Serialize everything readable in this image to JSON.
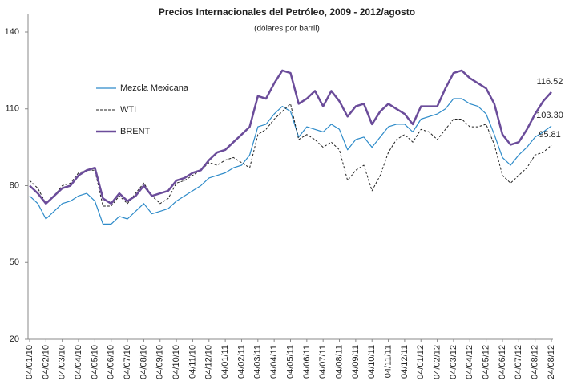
{
  "chart_data": {
    "type": "line",
    "title": "Precios Internacionales del Petróleo, 2009 - 2012/agosto",
    "subtitle": "(dólares por barril)",
    "categories": [
      "04/01/10",
      null,
      "04/02/10",
      null,
      "04/03/10",
      null,
      "04/04/10",
      null,
      "04/05/10",
      null,
      "04/06/10",
      null,
      "04/07/10",
      null,
      "04/08/10",
      null,
      "04/09/10",
      null,
      "04/10/10",
      null,
      "04/11/10",
      null,
      "04/12/10",
      null,
      "04/01/11",
      null,
      "04/02/11",
      null,
      "04/03/11",
      null,
      "04/04/11",
      null,
      "04/05/11",
      null,
      "04/06/11",
      null,
      "04/07/11",
      null,
      "04/08/11",
      null,
      "04/09/11",
      null,
      "04/10/11",
      null,
      "04/11/11",
      null,
      "04/12/11",
      null,
      "04/01/12",
      null,
      "04/02/12",
      null,
      "04/03/12",
      null,
      "04/04/12",
      null,
      "04/05/12",
      null,
      "04/06/12",
      null,
      "04/07/12",
      null,
      "04/08/12",
      null,
      "24/08/12"
    ],
    "series": [
      {
        "name": "Mezcla Mexicana",
        "color": "#2e8bc9",
        "line_width": 1.2,
        "line_style": "solid",
        "values": [
          76,
          73,
          67,
          70,
          73,
          74,
          76,
          77,
          74,
          65,
          65,
          68,
          67,
          70,
          73,
          69,
          70,
          71,
          74,
          76,
          78,
          80,
          83,
          84,
          85,
          87,
          88,
          92,
          103,
          104,
          108,
          111,
          109,
          99,
          103,
          102,
          101,
          104,
          102,
          94,
          98,
          99,
          95,
          99,
          103,
          104,
          104,
          101,
          106,
          107,
          108,
          110,
          114,
          114,
          112,
          111,
          108,
          100,
          91,
          88,
          92,
          95,
          99,
          101,
          103.3
        ],
        "value_labels": [
          null,
          null,
          null,
          null,
          null,
          null,
          null,
          null,
          null,
          null,
          null,
          null,
          null,
          null,
          null,
          null,
          null,
          null,
          null,
          null,
          null,
          null,
          null,
          null,
          null,
          null,
          null,
          null,
          null,
          null,
          null,
          null,
          null,
          null,
          null,
          null,
          null,
          null,
          null,
          null,
          null,
          null,
          null,
          null,
          null,
          null,
          null,
          null,
          null,
          null,
          null,
          null,
          null,
          null,
          null,
          null,
          null,
          null,
          null,
          null,
          null,
          null,
          null,
          null,
          "103.30"
        ]
      },
      {
        "name": "WTI",
        "color": "#222222",
        "line_width": 1,
        "line_style": "dashed",
        "values": [
          82,
          79,
          73,
          76,
          80,
          81,
          85,
          86,
          86,
          72,
          72,
          76,
          73,
          77,
          81,
          76,
          73,
          75,
          81,
          82,
          84,
          86,
          89,
          88,
          90,
          91,
          89,
          87,
          100,
          102,
          106,
          109,
          112,
          98,
          100,
          98,
          95,
          97,
          94,
          82,
          86,
          88,
          78,
          84,
          93,
          98,
          100,
          97,
          102,
          101,
          98,
          102,
          106,
          106,
          103,
          103,
          104,
          96,
          84,
          81,
          84,
          87,
          92,
          93,
          95.81
        ],
        "value_labels": [
          null,
          null,
          null,
          null,
          null,
          null,
          null,
          null,
          null,
          null,
          null,
          null,
          null,
          null,
          null,
          null,
          null,
          null,
          null,
          null,
          null,
          null,
          null,
          null,
          null,
          null,
          null,
          null,
          null,
          null,
          null,
          null,
          null,
          null,
          null,
          null,
          null,
          null,
          null,
          null,
          null,
          null,
          null,
          null,
          null,
          null,
          null,
          null,
          null,
          null,
          null,
          null,
          null,
          null,
          null,
          null,
          null,
          null,
          null,
          null,
          null,
          null,
          null,
          null,
          "95.81"
        ]
      },
      {
        "name": "BRENT",
        "color": "#6b4c9a",
        "line_width": 2.5,
        "line_style": "solid",
        "values": [
          80,
          77,
          73,
          76,
          79,
          80,
          84,
          86,
          87,
          75,
          73,
          77,
          74,
          76,
          80,
          76,
          77,
          78,
          82,
          83,
          85,
          86,
          90,
          93,
          94,
          97,
          100,
          103,
          115,
          114,
          120,
          125,
          124,
          112,
          114,
          117,
          111,
          117,
          113,
          107,
          111,
          112,
          104,
          109,
          112,
          110,
          108,
          104,
          111,
          111,
          111,
          118,
          124,
          125,
          122,
          120,
          118,
          112,
          100,
          96,
          97,
          102,
          108,
          113,
          116.52
        ],
        "value_labels": [
          null,
          null,
          null,
          null,
          null,
          null,
          null,
          null,
          null,
          null,
          null,
          null,
          null,
          null,
          null,
          null,
          null,
          null,
          null,
          null,
          null,
          null,
          null,
          null,
          null,
          null,
          null,
          null,
          null,
          null,
          null,
          null,
          null,
          null,
          null,
          null,
          null,
          null,
          null,
          null,
          null,
          null,
          null,
          null,
          null,
          null,
          null,
          null,
          null,
          null,
          null,
          null,
          null,
          null,
          null,
          null,
          null,
          null,
          null,
          null,
          null,
          null,
          null,
          null,
          "116.52"
        ]
      }
    ],
    "ylim": [
      20,
      140
    ],
    "yticks": [
      20,
      50,
      80,
      110,
      140
    ],
    "grid": false,
    "legend": "left"
  }
}
